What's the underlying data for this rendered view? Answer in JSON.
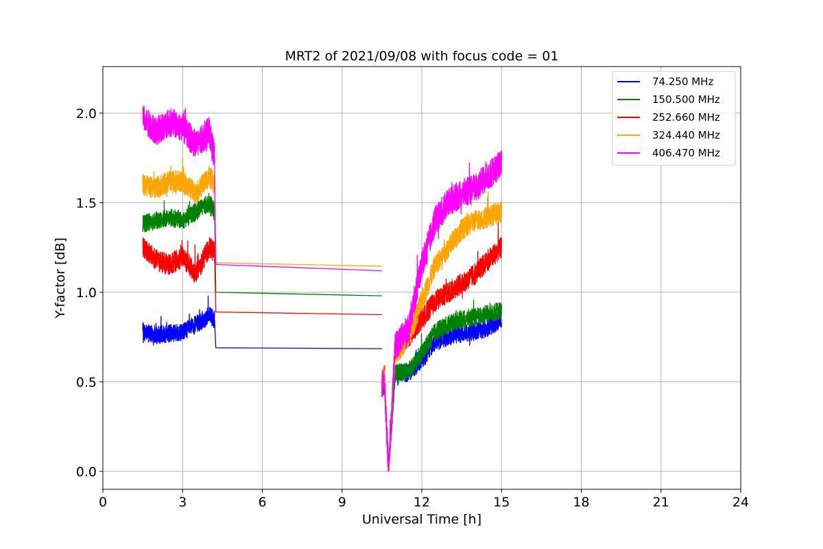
{
  "chart_data": {
    "type": "line",
    "title": "MRT2 of 2021/09/08 with focus code = 01",
    "xlabel": "Universal Time [h]",
    "ylabel": "Y-factor [dB]",
    "xlim": [
      0,
      24
    ],
    "ylim": [
      -0.1,
      2.26
    ],
    "xticks": [
      0,
      3,
      6,
      9,
      12,
      15,
      18,
      21,
      24
    ],
    "xtick_labels": [
      "0",
      "3",
      "6",
      "9",
      "12",
      "15",
      "18",
      "21",
      "24"
    ],
    "yticks": [
      0.0,
      0.5,
      1.0,
      1.5,
      2.0
    ],
    "ytick_labels": [
      "0.0",
      "0.5",
      "1.0",
      "1.5",
      "2.0"
    ],
    "grid": true,
    "legend_position": "top-right",
    "series": [
      {
        "name": "74.250 MHz",
        "label": " 74.250 MHz",
        "color": "#0000ff",
        "noise": 0.05,
        "segments": [
          {
            "x": [
              1.5,
              2.0,
              2.5,
              3.0,
              3.5,
              4.0,
              4.2
            ],
            "y": [
              0.78,
              0.76,
              0.77,
              0.78,
              0.82,
              0.87,
              0.85
            ]
          },
          {
            "x": [
              4.2,
              4.25,
              10.5
            ],
            "y": [
              0.85,
              0.69,
              0.685
            ]
          },
          {
            "x": [
              10.5,
              10.6,
              10.75,
              11.0,
              11.5,
              12.0,
              12.5,
              13.0,
              13.5,
              14.0,
              14.5,
              15.0
            ],
            "y": [
              0.45,
              0.48,
              0.02,
              0.55,
              0.55,
              0.62,
              0.72,
              0.75,
              0.77,
              0.78,
              0.8,
              0.85
            ],
            "spikes": [
              [
                10.75,
                0.0
              ]
            ]
          }
        ]
      },
      {
        "name": "150.500 MHz",
        "label": "150.500 MHz",
        "color": "#008000",
        "noise": 0.05,
        "segments": [
          {
            "x": [
              1.5,
              2.0,
              2.5,
              3.0,
              3.5,
              4.0,
              4.2
            ],
            "y": [
              1.38,
              1.4,
              1.42,
              1.4,
              1.45,
              1.5,
              1.45
            ]
          },
          {
            "x": [
              4.2,
              4.25,
              10.5
            ],
            "y": [
              1.45,
              1.0,
              0.98
            ]
          },
          {
            "x": [
              10.5,
              10.6,
              10.75,
              11.0,
              11.5,
              12.0,
              12.5,
              13.0,
              13.5,
              14.0,
              14.5,
              15.0
            ],
            "y": [
              0.48,
              0.5,
              0.03,
              0.55,
              0.56,
              0.66,
              0.78,
              0.82,
              0.85,
              0.86,
              0.88,
              0.9
            ]
          }
        ]
      },
      {
        "name": "252.660 MHz",
        "label": "252.660 MHz",
        "color": "#ff0000",
        "noise": 0.06,
        "segments": [
          {
            "x": [
              1.5,
              2.0,
              2.5,
              3.0,
              3.5,
              4.0,
              4.2
            ],
            "y": [
              1.25,
              1.18,
              1.15,
              1.2,
              1.1,
              1.25,
              1.22
            ]
          },
          {
            "x": [
              4.2,
              4.25,
              10.5
            ],
            "y": [
              1.22,
              0.89,
              0.875
            ]
          },
          {
            "x": [
              10.5,
              10.6,
              10.75,
              11.0,
              11.5,
              12.0,
              12.5,
              13.0,
              13.5,
              14.0,
              14.5,
              15.0
            ],
            "y": [
              0.5,
              0.55,
              0.0,
              0.7,
              0.75,
              0.85,
              0.95,
              1.0,
              1.05,
              1.1,
              1.18,
              1.25
            ]
          }
        ]
      },
      {
        "name": "324.440 MHz",
        "label": "324.440 MHz",
        "color": "#ffa500",
        "noise": 0.06,
        "segments": [
          {
            "x": [
              1.5,
              2.0,
              2.5,
              3.0,
              3.5,
              4.0,
              4.2
            ],
            "y": [
              1.6,
              1.58,
              1.62,
              1.62,
              1.55,
              1.65,
              1.6
            ]
          },
          {
            "x": [
              4.2,
              4.25,
              10.5
            ],
            "y": [
              1.6,
              1.165,
              1.145
            ]
          },
          {
            "x": [
              10.5,
              10.6,
              10.75,
              11.0,
              11.5,
              12.0,
              12.5,
              13.0,
              13.5,
              14.0,
              14.5,
              15.0
            ],
            "y": [
              0.5,
              0.55,
              0.0,
              0.65,
              0.75,
              0.95,
              1.15,
              1.25,
              1.35,
              1.4,
              1.42,
              1.45
            ]
          }
        ]
      },
      {
        "name": "406.470 MHz",
        "label": "406.470 MHz",
        "color": "#ff00ff",
        "noise": 0.08,
        "segments": [
          {
            "x": [
              1.5,
              2.0,
              2.5,
              3.0,
              3.5,
              4.0,
              4.2
            ],
            "y": [
              1.98,
              1.9,
              1.95,
              1.92,
              1.82,
              1.9,
              1.75
            ]
          },
          {
            "x": [
              4.2,
              4.25,
              10.5
            ],
            "y": [
              1.75,
              1.155,
              1.12
            ]
          },
          {
            "x": [
              10.5,
              10.6,
              10.75,
              11.0,
              11.5,
              12.0,
              12.5,
              13.0,
              13.5,
              14.0,
              14.5,
              15.0
            ],
            "y": [
              0.48,
              0.5,
              0.0,
              0.7,
              0.8,
              1.15,
              1.4,
              1.5,
              1.55,
              1.58,
              1.65,
              1.72
            ]
          }
        ]
      }
    ]
  }
}
